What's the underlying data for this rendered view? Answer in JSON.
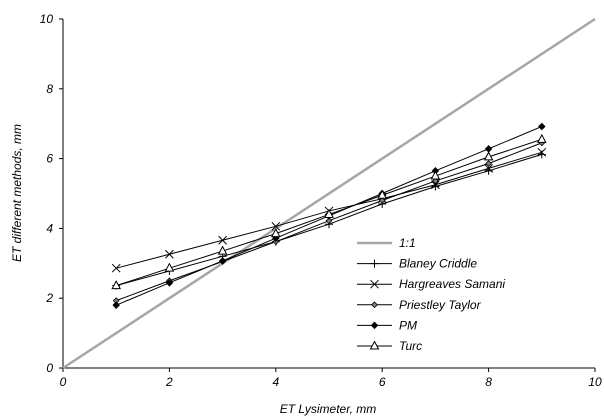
{
  "chart_data": {
    "type": "line",
    "title": "",
    "xlabel": "ET Lysimeter, mm",
    "ylabel": "ET different methods, mm",
    "xlim": [
      0,
      10
    ],
    "ylim": [
      0,
      10
    ],
    "x_ticks": [
      "0",
      "2",
      "4",
      "6",
      "8",
      "10"
    ],
    "y_ticks": [
      "0",
      "2",
      "4",
      "6",
      "8",
      "10"
    ],
    "grid": false,
    "legend_position": "center-right",
    "x": [
      1,
      2,
      3,
      4,
      5,
      6,
      7,
      8,
      9
    ],
    "reference_line": {
      "name": "1:1",
      "x": [
        0,
        10
      ],
      "y": [
        0,
        10
      ],
      "color": "#a6a6a6"
    },
    "series": [
      {
        "name": "Blaney Criddle",
        "marker": "plus",
        "color": "#000000",
        "values": [
          2.36,
          2.78,
          3.2,
          3.62,
          4.12,
          4.7,
          5.2,
          5.65,
          6.12
        ]
      },
      {
        "name": "Hargreaves Samani",
        "marker": "x",
        "color": "#000000",
        "values": [
          2.86,
          3.26,
          3.66,
          4.06,
          4.5,
          4.85,
          5.25,
          5.72,
          6.18
        ]
      },
      {
        "name": "Priestley Taylor",
        "marker": "small-diamond",
        "color": "#000000",
        "values": [
          1.93,
          2.5,
          3.05,
          3.62,
          4.22,
          4.8,
          5.36,
          5.86,
          6.45
        ]
      },
      {
        "name": "PM",
        "marker": "diamond",
        "color": "#000000",
        "values": [
          1.8,
          2.44,
          3.07,
          3.72,
          4.36,
          5.0,
          5.65,
          6.28,
          6.92
        ]
      },
      {
        "name": "Turc",
        "marker": "triangle",
        "color": "#000000",
        "values": [
          2.36,
          2.86,
          3.35,
          3.85,
          4.4,
          4.95,
          5.5,
          6.05,
          6.55
        ]
      }
    ]
  }
}
